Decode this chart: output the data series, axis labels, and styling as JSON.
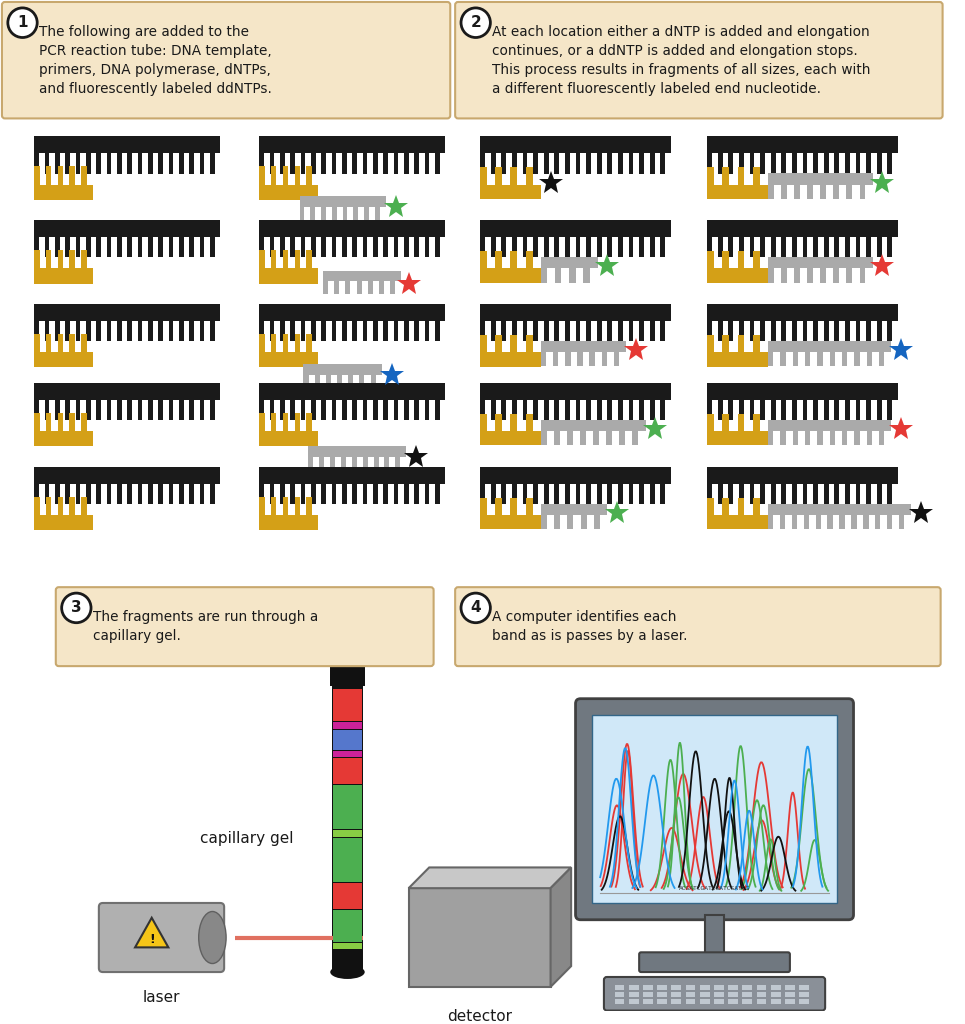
{
  "bg_color": "#ffffff",
  "box_bg": "#f5e6c8",
  "box_edge": "#c8a86e",
  "text_color": "#1a1a1a",
  "title1": "The following are added to the\nPCR reaction tube: DNA template,\nprimers, DNA polymerase, dNTPs,\nand fluorescently labeled ddNTPs.",
  "title2": "At each location either a dNTP is added and elongation\ncontinues, or a ddNTP is added and elongation stops.\nThis process results in fragments of all sizes, each with\na different fluorescently labeled end nucleotide.",
  "title3": "The fragments are run through a\ncapillary gel.",
  "title4": "A computer identifies each\nband as is passes by a laser.",
  "label_capillary": "capillary gel",
  "label_laser": "laser",
  "label_detector": "detector",
  "star_green": "#4caf50",
  "star_red": "#e53935",
  "star_blue": "#1565c0",
  "star_black": "#111111",
  "black_comb_color": "#1a1a1a",
  "gold_comb_color": "#d4a017",
  "grey_comb_color": "#aaaaaa",
  "gel_segs": [
    [
      0.28,
      "#e53935"
    ],
    [
      0.06,
      "#cc2299"
    ],
    [
      0.18,
      "#5577cc"
    ],
    [
      0.06,
      "#cc2299"
    ],
    [
      0.22,
      "#e53935"
    ],
    [
      0.38,
      "#4caf50"
    ],
    [
      0.06,
      "#88cc44"
    ],
    [
      0.38,
      "#4caf50"
    ],
    [
      0.22,
      "#e53935"
    ],
    [
      0.28,
      "#4caf50"
    ],
    [
      0.06,
      "#88cc44"
    ]
  ]
}
